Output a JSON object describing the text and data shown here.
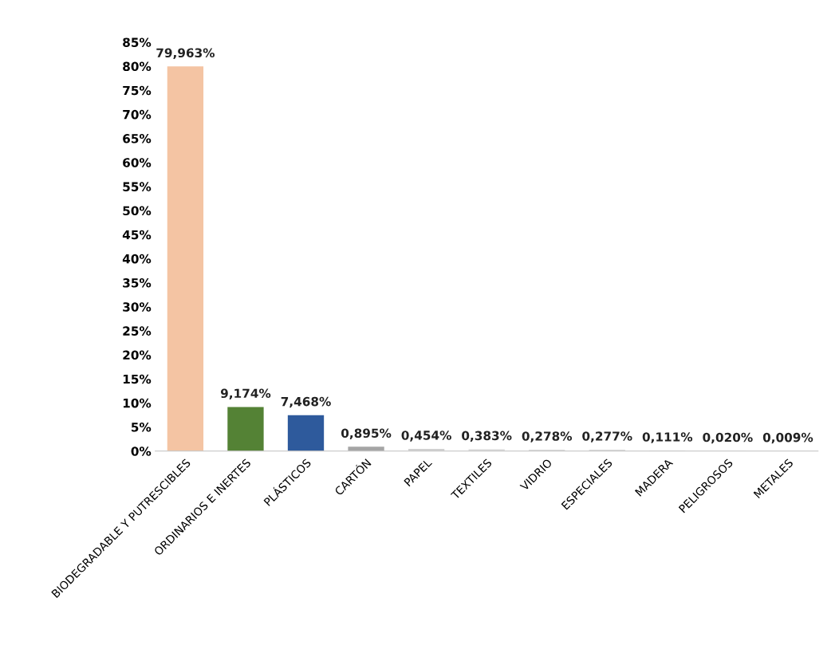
{
  "chart_data": {
    "type": "bar",
    "categories": [
      "BIODEGRADABLE Y PUTRESCIBLES",
      "ORDINARIOS E INERTES",
      "PLÁSTICOS",
      "CARTÓN",
      "PAPEL",
      "TEXTILES",
      "VIDRIO",
      "ESPECIALES",
      "MADERA",
      "PELIGROSOS",
      "METALES"
    ],
    "values": [
      79.963,
      9.174,
      7.468,
      0.895,
      0.454,
      0.383,
      0.278,
      0.277,
      0.111,
      0.02,
      0.009
    ],
    "value_labels": [
      "79,963%",
      "9,174%",
      "7,468%",
      "0,895%",
      "0,454%",
      "0,383%",
      "0,278%",
      "0,277%",
      "0,111%",
      "0,020%",
      "0,009%"
    ],
    "colors": [
      "#f4c4a3",
      "#548235",
      "#2e5a9c",
      "#a5a5a5",
      "#d0d0d0",
      "#d9d9d9",
      "#d9d9d9",
      "#d9d9d9",
      "#d9d9d9",
      "#d9d9d9",
      "#d9d9d9"
    ],
    "ylim": [
      0,
      85
    ],
    "yticks": [
      {
        "value": 0,
        "label": "0%"
      },
      {
        "value": 5,
        "label": "5%"
      },
      {
        "value": 10,
        "label": "10%"
      },
      {
        "value": 15,
        "label": "15%"
      },
      {
        "value": 20,
        "label": "20%"
      },
      {
        "value": 25,
        "label": "25%"
      },
      {
        "value": 30,
        "label": "30%"
      },
      {
        "value": 35,
        "label": "35%"
      },
      {
        "value": 40,
        "label": "40%"
      },
      {
        "value": 45,
        "label": "45%"
      },
      {
        "value": 50,
        "label": "50%"
      },
      {
        "value": 55,
        "label": "55%"
      },
      {
        "value": 60,
        "label": "60%"
      },
      {
        "value": 65,
        "label": "65%"
      },
      {
        "value": 70,
        "label": "70%"
      },
      {
        "value": 75,
        "label": "75%"
      },
      {
        "value": 80,
        "label": "80%"
      },
      {
        "value": 85,
        "label": "85%"
      }
    ],
    "grid": false
  }
}
